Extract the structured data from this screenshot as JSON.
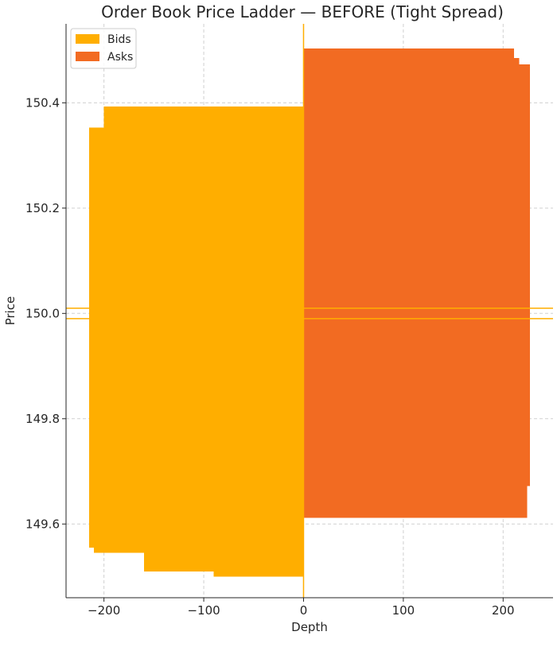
{
  "chart_data": {
    "type": "bar",
    "orientation": "horizontal-ladder",
    "title": "Order Book Price Ladder — BEFORE (Tight Spread)",
    "xlabel": "Depth",
    "ylabel": "Price",
    "xlim": [
      -238,
      250
    ],
    "ylim": [
      149.46,
      150.55
    ],
    "xticks": [
      -200,
      -100,
      0,
      100,
      200
    ],
    "xtick_labels": [
      "−200",
      "−100",
      "0",
      "100",
      "200"
    ],
    "yticks": [
      149.6,
      149.8,
      150.0,
      150.2,
      150.4
    ],
    "ytick_labels": [
      "149.6",
      "149.8",
      "150.0",
      "150.2",
      "150.4"
    ],
    "grid": true,
    "legend": {
      "position": "top-left",
      "entries": [
        "Bids",
        "Asks"
      ]
    },
    "series": [
      {
        "name": "Bids",
        "color": "#FFAE00",
        "bars": [
          {
            "price_low": 149.5,
            "price_high": 149.51,
            "depth": -90
          },
          {
            "price_low": 149.51,
            "price_high": 149.545,
            "depth": -160
          },
          {
            "price_low": 149.545,
            "price_high": 149.555,
            "depth": -210
          },
          {
            "price_low": 149.555,
            "price_high": 150.353,
            "depth": -215
          },
          {
            "price_low": 150.353,
            "price_high": 150.393,
            "depth": -200
          }
        ]
      },
      {
        "name": "Asks",
        "color": "#F26B22",
        "bars": [
          {
            "price_low": 149.612,
            "price_high": 149.672,
            "depth": 224
          },
          {
            "price_low": 149.672,
            "price_high": 150.473,
            "depth": 227
          },
          {
            "price_low": 150.473,
            "price_high": 150.485,
            "depth": 216
          },
          {
            "price_low": 150.485,
            "price_high": 150.503,
            "depth": 211
          }
        ]
      }
    ],
    "reference_lines": [
      {
        "orientation": "horizontal",
        "value": 149.99,
        "color": "#FFAE00"
      },
      {
        "orientation": "horizontal",
        "value": 150.01,
        "color": "#FFAE00"
      },
      {
        "orientation": "vertical",
        "value": 0,
        "color": "#FFAE00"
      }
    ]
  }
}
